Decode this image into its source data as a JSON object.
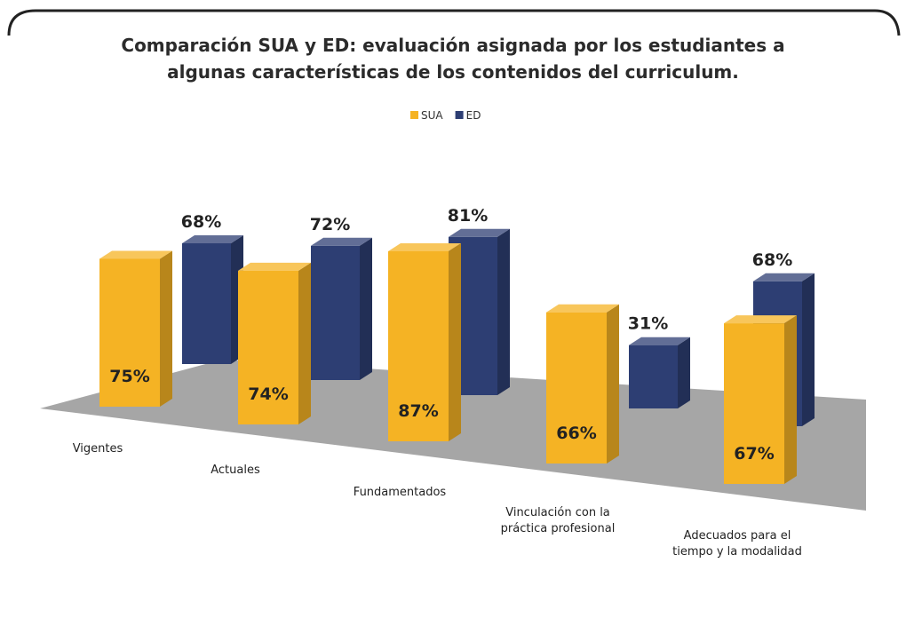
{
  "chart_data": {
    "type": "bar3d",
    "title": "Comparación SUA y ED: evaluación asignada por los estudiantes a algunas características de  los contenidos del curriculum.",
    "categories": [
      "Vigentes",
      "Actuales",
      "Fundamentados",
      "Vinculación con la práctica profesional",
      "Adecuados para el tiempo y la modalidad"
    ],
    "series": [
      {
        "name": "SUA",
        "color": "#f5b324",
        "values": [
          75,
          74,
          87,
          66,
          67
        ],
        "value_labels": [
          "75%",
          "74%",
          "87%",
          "66%",
          "67%"
        ]
      },
      {
        "name": "ED",
        "color": "#2d3e73",
        "values": [
          68,
          72,
          81,
          31,
          68
        ],
        "value_labels": [
          "68%",
          "72%",
          "81%",
          "31%",
          "68%"
        ]
      }
    ],
    "legend": "top"
  }
}
